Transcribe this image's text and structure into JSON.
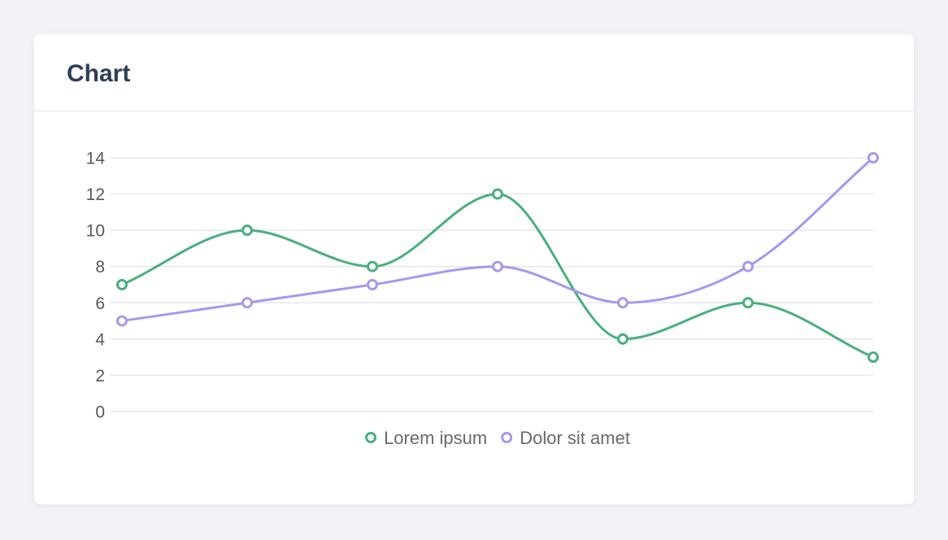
{
  "card": {
    "title": "Chart"
  },
  "chart_data": {
    "type": "line",
    "title": "",
    "xlabel": "",
    "ylabel": "",
    "x": [
      "",
      "",
      "",
      "",
      "",
      "",
      ""
    ],
    "ylim": [
      0,
      14
    ],
    "yticks": [
      0,
      2,
      4,
      6,
      8,
      10,
      12,
      14
    ],
    "grid": true,
    "smooth": true,
    "legend_position": "bottom",
    "series": [
      {
        "name": "Lorem ipsum",
        "color": "#48b07a",
        "values": [
          7,
          10,
          8,
          12,
          4,
          6,
          3
        ]
      },
      {
        "name": "Dolor sit amet",
        "color": "#a697f0",
        "values": [
          5,
          6,
          7,
          8,
          6,
          8,
          14
        ]
      }
    ]
  }
}
